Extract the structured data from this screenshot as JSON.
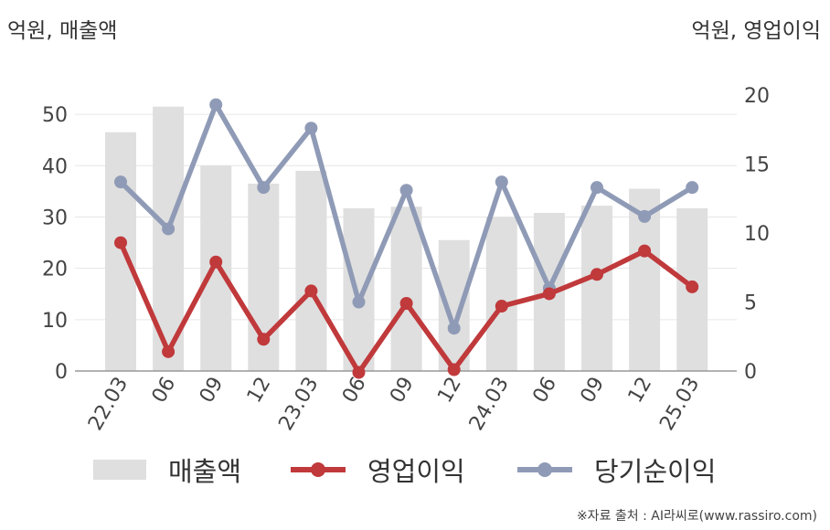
{
  "unit_left": "억원, 매출액",
  "unit_right": "억원, 영업이익",
  "source": "※자료 출처 : AI라씨로(www.rassiro.com)",
  "chart_data": {
    "type": "bar+line",
    "categories": [
      "22.03",
      "06",
      "09",
      "12",
      "23.03",
      "06",
      "09",
      "12",
      "24.03",
      "06",
      "09",
      "12",
      "25.03"
    ],
    "y_left": {
      "ylim": [
        0,
        55
      ],
      "ticks": [
        0,
        10,
        20,
        30,
        40,
        50
      ]
    },
    "y_right": {
      "ylim": [
        0,
        20
      ],
      "ticks": [
        0,
        5,
        10,
        15,
        20
      ]
    },
    "grid": true,
    "legend_position": "bottom",
    "series": [
      {
        "name": "매출액",
        "type": "bar",
        "axis": "left",
        "color": "#dfdfdf",
        "values": [
          46.5,
          51.5,
          40,
          36.5,
          39,
          31.7,
          32,
          25.5,
          30,
          30.8,
          32.2,
          35.5,
          31.7
        ]
      },
      {
        "name": "영업이익",
        "type": "line",
        "axis": "right",
        "color": "#c0393b",
        "values": [
          9.3,
          1.4,
          7.9,
          2.3,
          5.8,
          -0.1,
          4.9,
          0.1,
          4.7,
          5.6,
          7.0,
          8.7,
          6.1
        ]
      },
      {
        "name": "당기순이익",
        "type": "line",
        "axis": "right",
        "color": "#8f9bb6",
        "values": [
          13.7,
          10.3,
          19.3,
          13.3,
          17.6,
          5.0,
          13.1,
          3.1,
          13.7,
          6.0,
          13.3,
          11.2,
          13.3
        ]
      }
    ]
  }
}
